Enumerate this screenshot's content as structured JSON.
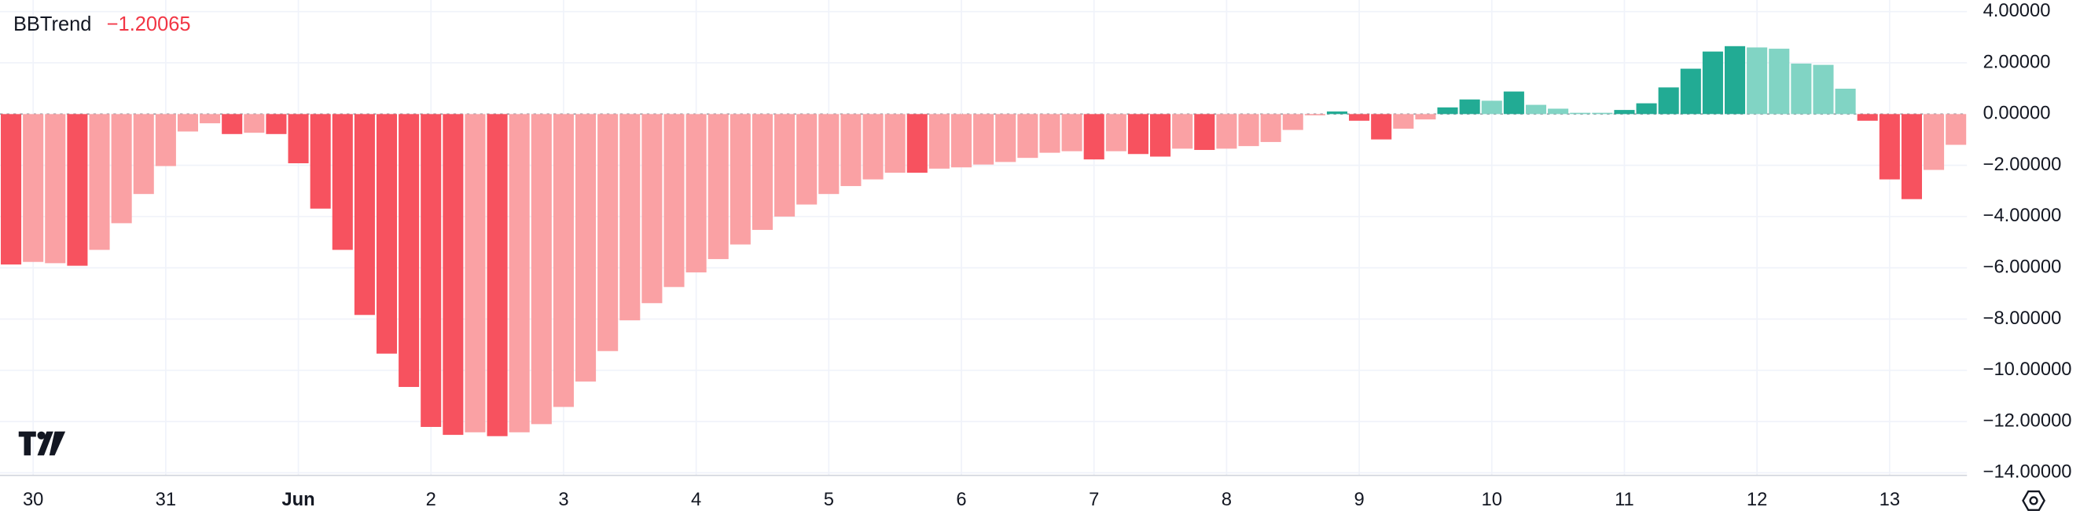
{
  "chart_data": {
    "type": "bar",
    "title": "BBTrend",
    "legend_value": {
      "value": -1.20065,
      "label": "−1.20065"
    },
    "categories": [
      null,
      "30",
      null,
      null,
      null,
      null,
      null,
      "31",
      null,
      null,
      null,
      null,
      null,
      "Jun",
      null,
      null,
      null,
      null,
      null,
      "2",
      null,
      null,
      null,
      null,
      null,
      "3",
      null,
      null,
      null,
      null,
      null,
      "4",
      null,
      null,
      null,
      null,
      null,
      "5",
      null,
      null,
      null,
      null,
      null,
      "6",
      null,
      null,
      null,
      null,
      null,
      "7",
      null,
      null,
      null,
      null,
      null,
      "8",
      null,
      null,
      null,
      null,
      null,
      "9",
      null,
      null,
      null,
      null,
      null,
      "10",
      null,
      null,
      null,
      null,
      null,
      "11",
      null,
      null,
      null,
      null,
      null,
      "12",
      null,
      null,
      null,
      null,
      null,
      "13",
      null,
      null,
      null
    ],
    "values": [
      -5.87,
      -5.77,
      -5.82,
      -5.92,
      -5.3,
      -4.26,
      -3.12,
      -2.03,
      -0.68,
      -0.36,
      -0.78,
      -0.73,
      -0.78,
      -1.92,
      -3.69,
      -5.3,
      -7.84,
      -9.35,
      -10.65,
      -12.21,
      -12.52,
      -12.42,
      -12.57,
      -12.42,
      -12.1,
      -11.43,
      -10.44,
      -9.25,
      -8.05,
      -7.38,
      -6.75,
      -6.18,
      -5.66,
      -5.09,
      -4.52,
      -4.0,
      -3.53,
      -3.12,
      -2.81,
      -2.55,
      -2.29,
      -2.29,
      -2.13,
      -2.08,
      -1.97,
      -1.87,
      -1.71,
      -1.51,
      -1.45,
      -1.77,
      -1.45,
      -1.56,
      -1.66,
      -1.35,
      -1.4,
      -1.35,
      -1.25,
      -1.09,
      -0.62,
      -0.05,
      0.1,
      -0.26,
      -0.99,
      -0.57,
      -0.21,
      0.26,
      0.57,
      0.52,
      0.88,
      0.36,
      0.21,
      0.05,
      0.05,
      0.16,
      0.42,
      1.04,
      1.77,
      2.44,
      2.65,
      2.6,
      2.55,
      1.97,
      1.92,
      0.99,
      -0.26,
      -2.55,
      -3.32,
      -2.18,
      -1.20065
    ],
    "colors": [
      "#f7525f",
      "#faa1a4",
      "#faa1a4",
      "#f7525f",
      "#faa1a4",
      "#faa1a4",
      "#faa1a4",
      "#faa1a4",
      "#faa1a4",
      "#faa1a4",
      "#f7525f",
      "#faa1a4",
      "#f7525f",
      "#f7525f",
      "#f7525f",
      "#f7525f",
      "#f7525f",
      "#f7525f",
      "#f7525f",
      "#f7525f",
      "#f7525f",
      "#faa1a4",
      "#f7525f",
      "#faa1a4",
      "#faa1a4",
      "#faa1a4",
      "#faa1a4",
      "#faa1a4",
      "#faa1a4",
      "#faa1a4",
      "#faa1a4",
      "#faa1a4",
      "#faa1a4",
      "#faa1a4",
      "#faa1a4",
      "#faa1a4",
      "#faa1a4",
      "#faa1a4",
      "#faa1a4",
      "#faa1a4",
      "#faa1a4",
      "#f7525f",
      "#faa1a4",
      "#faa1a4",
      "#faa1a4",
      "#faa1a4",
      "#faa1a4",
      "#faa1a4",
      "#faa1a4",
      "#f7525f",
      "#faa1a4",
      "#f7525f",
      "#f7525f",
      "#faa1a4",
      "#f7525f",
      "#faa1a4",
      "#faa1a4",
      "#faa1a4",
      "#faa1a4",
      "#faa1a4",
      "#22ab94",
      "#f7525f",
      "#f7525f",
      "#faa1a4",
      "#faa1a4",
      "#22ab94",
      "#22ab94",
      "#81d4c4",
      "#22ab94",
      "#81d4c4",
      "#81d4c4",
      "#81d4c4",
      "#81d4c4",
      "#22ab94",
      "#22ab94",
      "#22ab94",
      "#22ab94",
      "#22ab94",
      "#22ab94",
      "#81d4c4",
      "#81d4c4",
      "#81d4c4",
      "#81d4c4",
      "#81d4c4",
      "#f7525f",
      "#f7525f",
      "#f7525f",
      "#faa1a4",
      "#faa1a4"
    ],
    "ylim": [
      -14.1,
      4.45
    ],
    "yticks": [
      {
        "value": 4,
        "label": "4.00000"
      },
      {
        "value": 2,
        "label": "2.00000"
      },
      {
        "value": 0,
        "label": "0.00000"
      },
      {
        "value": -2,
        "label": "−2.00000"
      },
      {
        "value": -4,
        "label": "−4.00000"
      },
      {
        "value": -6,
        "label": "−6.00000"
      },
      {
        "value": -8,
        "label": "−8.00000"
      },
      {
        "value": -10,
        "label": "−10.00000"
      },
      {
        "value": -12,
        "label": "−12.00000"
      },
      {
        "value": -14,
        "label": "−14.00000"
      }
    ],
    "grid": true
  }
}
